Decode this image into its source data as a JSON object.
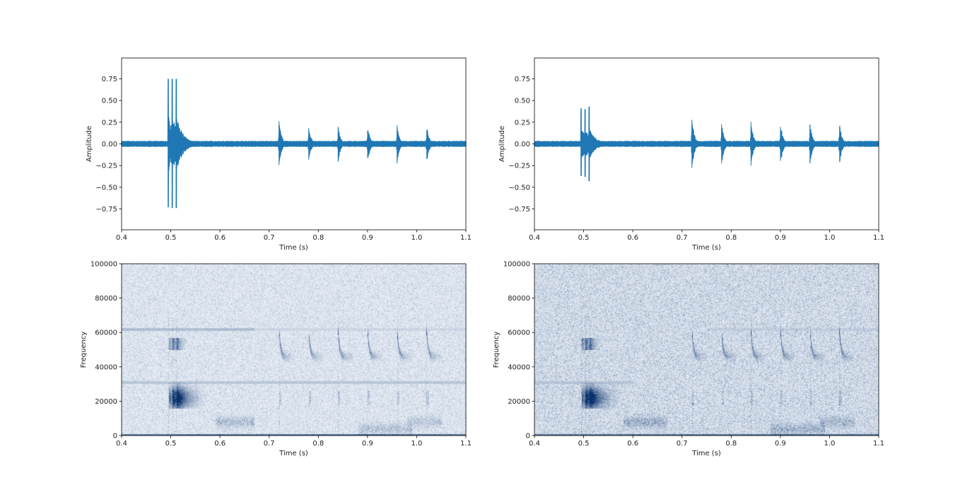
{
  "chart_data": [
    {
      "type": "line",
      "panel": "top-left",
      "xlabel": "Time (s)",
      "ylabel": "Amplitude",
      "xlim": [
        0.4,
        1.1
      ],
      "ylim": [
        -0.99,
        0.99
      ],
      "xticks": [
        "0.4",
        "0.5",
        "0.6",
        "0.7",
        "0.8",
        "0.9",
        "1.0",
        "1.1"
      ],
      "yticks": [
        "−0.75",
        "−0.50",
        "−0.25",
        "0.00",
        "0.25",
        "0.50",
        "0.75"
      ],
      "color": "#1f77b4",
      "noise_amplitude": 0.035,
      "events": [
        {
          "t": 0.495,
          "max": 0.75,
          "min": -0.73,
          "kind": "burst"
        },
        {
          "t": 0.503,
          "max": 0.75,
          "min": -0.74,
          "kind": "burst"
        },
        {
          "t": 0.511,
          "max": 0.75,
          "min": -0.74,
          "kind": "burst"
        },
        {
          "t": 0.72,
          "max": 0.29,
          "min": -0.27,
          "kind": "call"
        },
        {
          "t": 0.78,
          "max": 0.22,
          "min": -0.22,
          "kind": "call"
        },
        {
          "t": 0.84,
          "max": 0.22,
          "min": -0.23,
          "kind": "call"
        },
        {
          "t": 0.9,
          "max": 0.23,
          "min": -0.24,
          "kind": "call"
        },
        {
          "t": 0.96,
          "max": 0.22,
          "min": -0.23,
          "kind": "call"
        },
        {
          "t": 1.02,
          "max": 0.23,
          "min": -0.24,
          "kind": "call"
        }
      ]
    },
    {
      "type": "line",
      "panel": "top-right",
      "xlabel": "Time (s)",
      "ylabel": "Amplitude",
      "xlim": [
        0.4,
        1.1
      ],
      "ylim": [
        -0.99,
        0.99
      ],
      "xticks": [
        "0.4",
        "0.5",
        "0.6",
        "0.7",
        "0.8",
        "0.9",
        "1.0",
        "1.1"
      ],
      "yticks": [
        "−0.75",
        "−0.50",
        "−0.25",
        "0.00",
        "0.25",
        "0.50",
        "0.75"
      ],
      "color": "#1f77b4",
      "noise_amplitude": 0.035,
      "events": [
        {
          "t": 0.495,
          "max": 0.41,
          "min": -0.37,
          "kind": "burst"
        },
        {
          "t": 0.503,
          "max": 0.4,
          "min": -0.38,
          "kind": "burst"
        },
        {
          "t": 0.511,
          "max": 0.43,
          "min": -0.43,
          "kind": "burst"
        },
        {
          "t": 0.72,
          "max": 0.33,
          "min": -0.33,
          "kind": "call"
        },
        {
          "t": 0.78,
          "max": 0.28,
          "min": -0.28,
          "kind": "call"
        },
        {
          "t": 0.84,
          "max": 0.28,
          "min": -0.28,
          "kind": "call"
        },
        {
          "t": 0.9,
          "max": 0.26,
          "min": -0.26,
          "kind": "call"
        },
        {
          "t": 0.96,
          "max": 0.26,
          "min": -0.26,
          "kind": "call"
        },
        {
          "t": 1.02,
          "max": 0.26,
          "min": -0.26,
          "kind": "call"
        }
      ]
    },
    {
      "type": "heatmap",
      "panel": "bottom-left",
      "xlabel": "Time (s)",
      "ylabel": "Frequency",
      "xlim": [
        0.4,
        1.1
      ],
      "ylim": [
        0,
        100000
      ],
      "xticks": [
        "0.4",
        "0.5",
        "0.6",
        "0.7",
        "0.8",
        "0.9",
        "1.0",
        "1.1"
      ],
      "yticks": [
        "0",
        "20000",
        "40000",
        "60000",
        "80000",
        "100000"
      ],
      "colormap": "Blues",
      "background_level": 0.12,
      "tones": [
        {
          "f": 62000,
          "t0": 0.4,
          "t1": 0.67,
          "level": 0.35
        },
        {
          "f": 62000,
          "t0": 0.67,
          "t1": 1.1,
          "level": 0.2
        },
        {
          "f": 31000,
          "t0": 0.4,
          "t1": 1.1,
          "level": 0.3
        },
        {
          "f": 500,
          "t0": 0.4,
          "t1": 1.1,
          "level": 0.8
        }
      ],
      "events": [
        {
          "t": 0.495,
          "kind": "burst"
        },
        {
          "t": 0.503,
          "kind": "burst"
        },
        {
          "t": 0.511,
          "kind": "burst"
        },
        {
          "t": 0.72,
          "kind": "call"
        },
        {
          "t": 0.78,
          "kind": "call"
        },
        {
          "t": 0.84,
          "kind": "call"
        },
        {
          "t": 0.9,
          "kind": "call"
        },
        {
          "t": 0.96,
          "kind": "call"
        },
        {
          "t": 1.02,
          "kind": "call"
        }
      ],
      "low_blobs": [
        {
          "t0": 0.59,
          "t1": 0.67,
          "f": 8000,
          "level": 0.35
        },
        {
          "t0": 0.88,
          "t1": 0.99,
          "f": 4000,
          "level": 0.3
        },
        {
          "t0": 0.98,
          "t1": 1.05,
          "f": 8000,
          "level": 0.25
        }
      ]
    },
    {
      "type": "heatmap",
      "panel": "bottom-right",
      "xlabel": "Time (s)",
      "ylabel": "Frequency",
      "xlim": [
        0.4,
        1.1
      ],
      "ylim": [
        0,
        100000
      ],
      "xticks": [
        "0.4",
        "0.5",
        "0.6",
        "0.7",
        "0.8",
        "0.9",
        "1.0",
        "1.1"
      ],
      "yticks": [
        "0",
        "20000",
        "40000",
        "60000",
        "80000",
        "100000"
      ],
      "colormap": "Blues",
      "background_level": 0.18,
      "tones": [
        {
          "f": 62000,
          "t0": 0.75,
          "t1": 1.1,
          "level": 0.25
        },
        {
          "f": 31000,
          "t0": 0.4,
          "t1": 0.6,
          "level": 0.3
        },
        {
          "f": 500,
          "t0": 0.4,
          "t1": 1.1,
          "level": 0.8
        }
      ],
      "events": [
        {
          "t": 0.495,
          "kind": "burst"
        },
        {
          "t": 0.503,
          "kind": "burst"
        },
        {
          "t": 0.511,
          "kind": "burst"
        },
        {
          "t": 0.72,
          "kind": "call"
        },
        {
          "t": 0.78,
          "kind": "call"
        },
        {
          "t": 0.84,
          "kind": "call"
        },
        {
          "t": 0.9,
          "kind": "call"
        },
        {
          "t": 0.96,
          "kind": "call"
        },
        {
          "t": 1.02,
          "kind": "call"
        }
      ],
      "low_blobs": [
        {
          "t0": 0.58,
          "t1": 0.67,
          "f": 8000,
          "level": 0.4
        },
        {
          "t0": 0.88,
          "t1": 0.99,
          "f": 4000,
          "level": 0.35
        },
        {
          "t0": 0.98,
          "t1": 1.05,
          "f": 8000,
          "level": 0.3
        }
      ]
    }
  ]
}
